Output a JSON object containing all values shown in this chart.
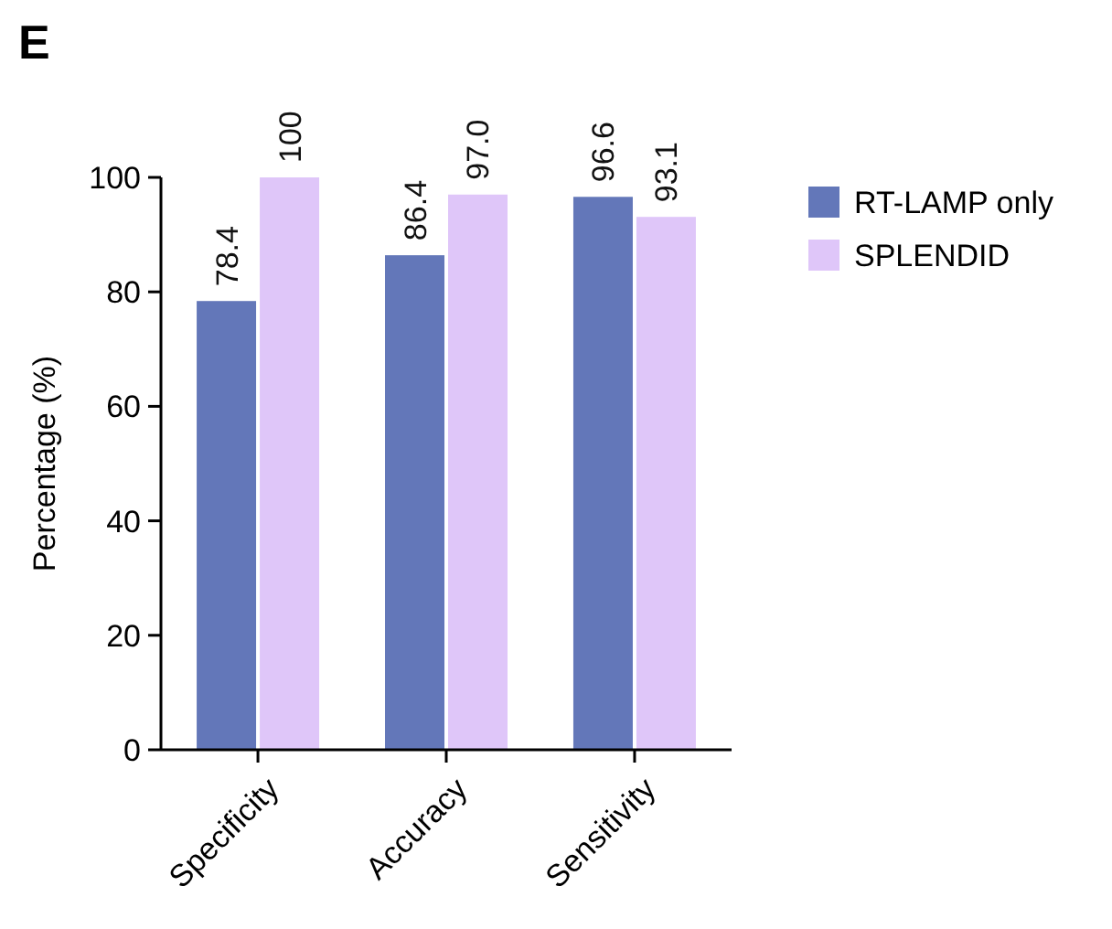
{
  "chart_data": {
    "type": "bar",
    "ylabel": "Percentage (%)",
    "annotations": [
      "E"
    ],
    "categories": [
      "Specificity",
      "Accuracy",
      "Sensitivity"
    ],
    "series": [
      {
        "name": "RT-LAMP only",
        "color": "#6377b9",
        "values": [
          78.4,
          86.4,
          96.6
        ],
        "value_labels": [
          "78.4",
          "86.4",
          "96.6"
        ]
      },
      {
        "name": "SPLENDID",
        "color": "#dfc6f9",
        "values": [
          100,
          97.0,
          93.1
        ],
        "value_labels": [
          "100",
          "97.0",
          "93.1"
        ]
      }
    ],
    "ylim": [
      0,
      100
    ],
    "yticks": [
      0,
      20,
      40,
      60,
      80,
      100
    ],
    "grid": false,
    "legend": "right"
  }
}
